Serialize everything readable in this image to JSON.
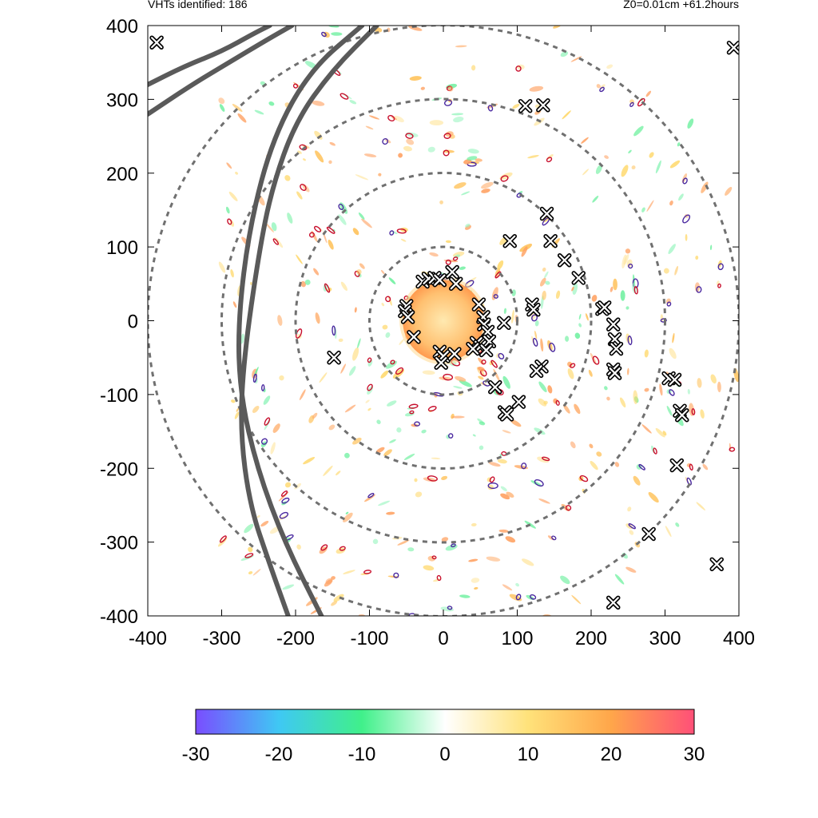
{
  "header": {
    "vht_count_text": "VHTs identified: 186",
    "run_info": "Z0=0.01cm  +61.2hours"
  },
  "chart_data": {
    "type": "heatmap",
    "title": "",
    "xlabel": "",
    "ylabel": "",
    "xlim": [
      -400,
      400
    ],
    "ylim": [
      -400,
      400
    ],
    "x_ticks": [
      "-400",
      "-300",
      "-200",
      "-100",
      "0",
      "100",
      "200",
      "300",
      "400"
    ],
    "y_ticks": [
      "400",
      "300",
      "200",
      "100",
      "0",
      "-100",
      "-200",
      "-300",
      "-400"
    ],
    "colorbar": {
      "range": [
        -30,
        30
      ],
      "tick_labels": [
        "-30",
        "-20",
        "-10",
        "0",
        "10",
        "20",
        "30"
      ],
      "colors": [
        "#7a4dff",
        "#3fc8f4",
        "#40f08a",
        "#ffffff",
        "#ffe27a",
        "#ffa64a",
        "#ff5078"
      ]
    },
    "range_rings_radius": [
      100,
      200,
      300,
      400
    ],
    "grid": false,
    "core": {
      "center": [
        0,
        0
      ],
      "radius": 55,
      "inner_color": "#ffe9b0",
      "outer_color": "#ff9a4e"
    },
    "vht_markers": [
      [
        -388,
        377
      ],
      [
        393,
        370
      ],
      [
        111,
        291
      ],
      [
        135,
        292
      ],
      [
        140,
        145
      ],
      [
        90,
        108
      ],
      [
        145,
        108
      ],
      [
        164,
        82
      ],
      [
        183,
        58
      ],
      [
        12,
        66
      ],
      [
        -28,
        53
      ],
      [
        -20,
        57
      ],
      [
        -12,
        58
      ],
      [
        -5,
        55
      ],
      [
        17,
        50
      ],
      [
        -50,
        20
      ],
      [
        -52,
        13
      ],
      [
        -48,
        5
      ],
      [
        48,
        22
      ],
      [
        120,
        22
      ],
      [
        122,
        15
      ],
      [
        215,
        16
      ],
      [
        218,
        18
      ],
      [
        230,
        -5
      ],
      [
        232,
        -25
      ],
      [
        234,
        -38
      ],
      [
        54,
        5
      ],
      [
        55,
        -5
      ],
      [
        60,
        -15
      ],
      [
        62,
        -28
      ],
      [
        45,
        -30
      ],
      [
        50,
        -35
      ],
      [
        40,
        -38
      ],
      [
        58,
        -40
      ],
      [
        82,
        -3
      ],
      [
        -40,
        -22
      ],
      [
        -148,
        -50
      ],
      [
        -5,
        -42
      ],
      [
        0,
        -48
      ],
      [
        15,
        -45
      ],
      [
        -3,
        -57
      ],
      [
        133,
        -62
      ],
      [
        126,
        -68
      ],
      [
        230,
        -66
      ],
      [
        232,
        -71
      ],
      [
        305,
        -78
      ],
      [
        313,
        -80
      ],
      [
        70,
        -90
      ],
      [
        102,
        -110
      ],
      [
        83,
        -124
      ],
      [
        86,
        -127
      ],
      [
        320,
        -122
      ],
      [
        323,
        -128
      ],
      [
        316,
        -196
      ],
      [
        278,
        -289
      ],
      [
        370,
        -330
      ],
      [
        230,
        -382
      ]
    ],
    "track_curves": [
      [
        [
          -400,
          320
        ],
        [
          -350,
          345
        ],
        [
          -300,
          365
        ],
        [
          -255,
          390
        ],
        [
          -235,
          400
        ]
      ],
      [
        [
          -400,
          280
        ],
        [
          -340,
          320
        ],
        [
          -290,
          350
        ],
        [
          -240,
          380
        ],
        [
          -205,
          400
        ]
      ],
      [
        [
          -110,
          400
        ],
        [
          -180,
          340
        ],
        [
          -230,
          250
        ],
        [
          -262,
          130
        ],
        [
          -278,
          0
        ],
        [
          -275,
          -100
        ],
        [
          -252,
          -200
        ],
        [
          -215,
          -300
        ],
        [
          -165,
          -400
        ]
      ],
      [
        [
          -90,
          400
        ],
        [
          -150,
          340
        ],
        [
          -200,
          270
        ],
        [
          -232,
          180
        ],
        [
          -250,
          90
        ],
        [
          -270,
          -50
        ],
        [
          -275,
          -150
        ],
        [
          -262,
          -250
        ],
        [
          -235,
          -330
        ],
        [
          -210,
          -400
        ]
      ]
    ]
  }
}
